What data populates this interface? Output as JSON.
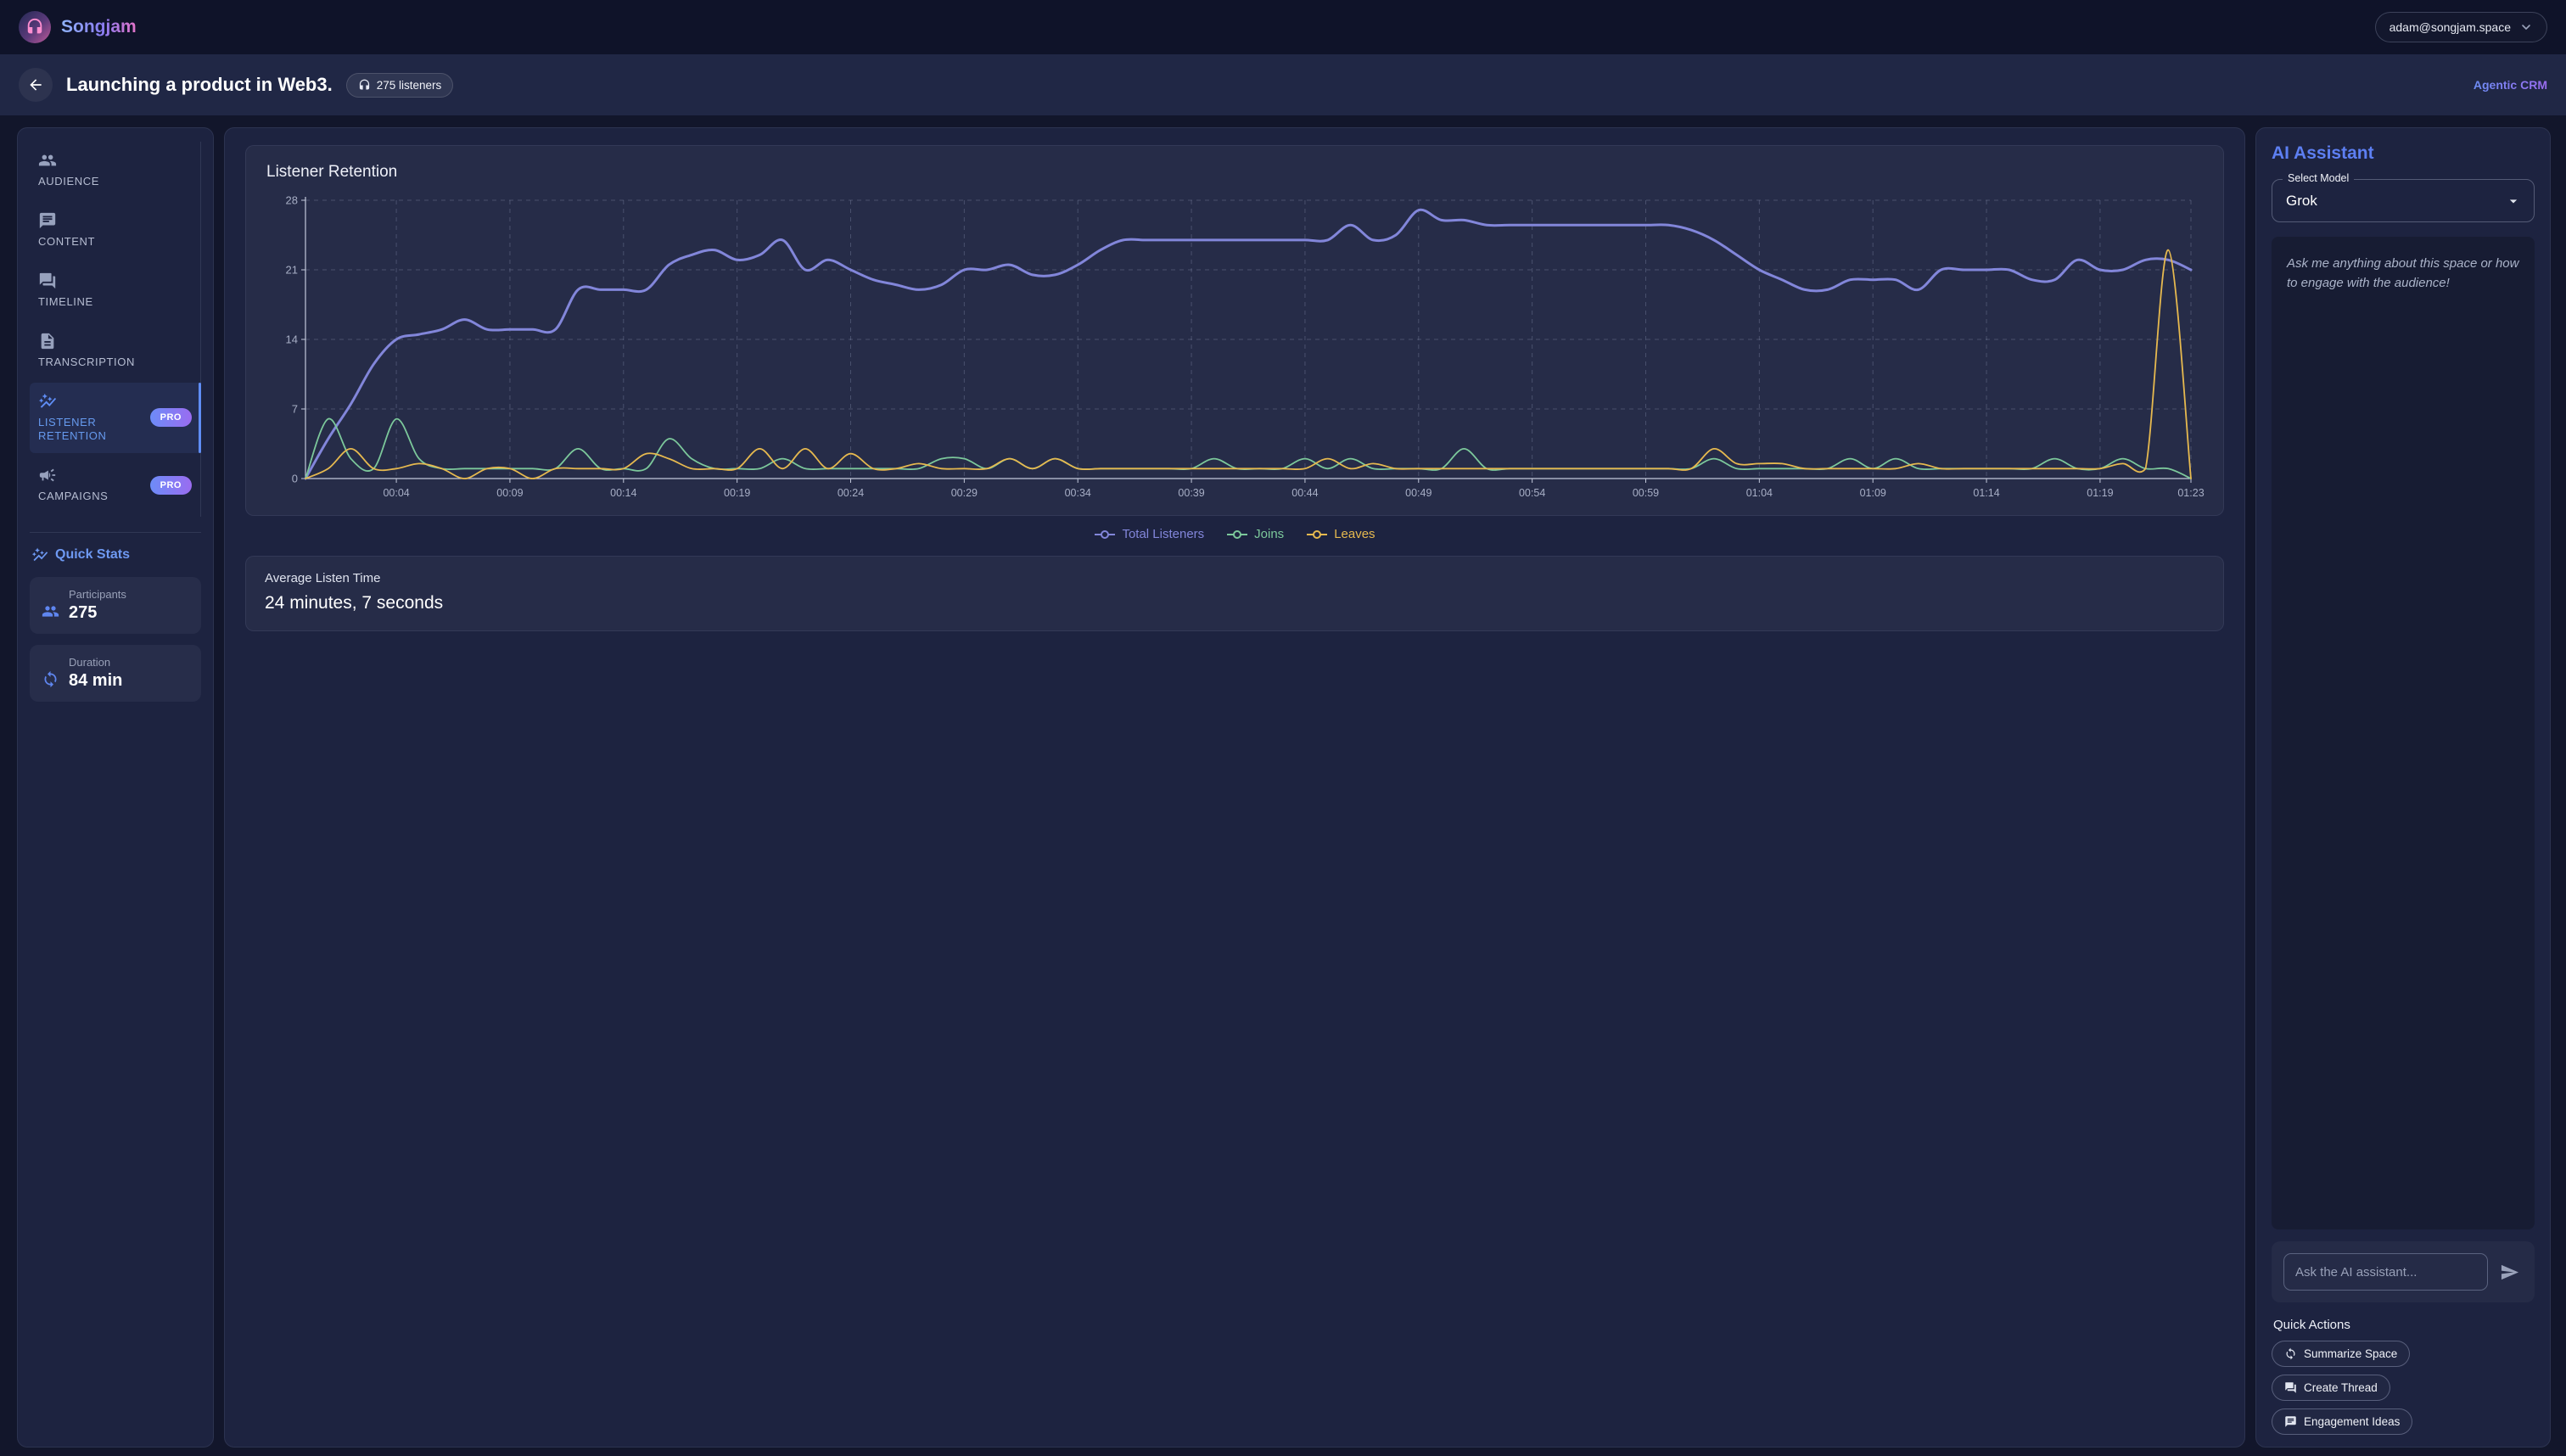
{
  "brand": {
    "name": "Songjam",
    "logo_icon": "headphones-girl",
    "account_email": "adam@songjam.space"
  },
  "header": {
    "title": "Launching a product in Web3.",
    "listeners_badge": "275 listeners",
    "crm_link": "Agentic CRM"
  },
  "sidebar": {
    "pro_label": "PRO",
    "items": [
      {
        "label": "AUDIENCE",
        "icon": "people",
        "selected": false,
        "pro": false
      },
      {
        "label": "CONTENT",
        "icon": "chat",
        "selected": false,
        "pro": false
      },
      {
        "label": "TIMELINE",
        "icon": "forum",
        "selected": false,
        "pro": false
      },
      {
        "label": "TRANSCRIPTION",
        "icon": "document",
        "selected": false,
        "pro": false
      },
      {
        "label": "LISTENER RETENTION",
        "icon": "auto-graph",
        "selected": true,
        "pro": true
      },
      {
        "label": "CAMPAIGNS",
        "icon": "megaphone",
        "selected": false,
        "pro": true
      }
    ],
    "quick_stats": {
      "title": "Quick Stats",
      "icon": "auto-graph",
      "stats": [
        {
          "label": "Participants",
          "value": "275",
          "icon": "people"
        },
        {
          "label": "Duration",
          "value": "84 min",
          "icon": "sync"
        }
      ]
    }
  },
  "average_listen_time": {
    "label": "Average Listen Time",
    "value": "24 minutes, 7 seconds"
  },
  "ai_panel": {
    "title": "AI Assistant",
    "select_label": "Select Model",
    "selected_model": "Grok",
    "empty_message": "Ask me anything about this space or how to engage with the audience!",
    "input_placeholder": "Ask the AI assistant...",
    "quick_actions_label": "Quick Actions",
    "actions": [
      {
        "label": "Summarize Space",
        "icon": "sync"
      },
      {
        "label": "Create Thread",
        "icon": "forum"
      },
      {
        "label": "Engagement Ideas",
        "icon": "chat"
      }
    ]
  },
  "colors": {
    "accent_blue": "#5f86f0",
    "total_listeners": "#8286da",
    "joins": "#7cc89b",
    "leaves": "#e6b94f",
    "card_bg": "#1d2340",
    "inner_card_bg": "#262c48",
    "axis": "#c3c9db",
    "grid": "rgba(148,158,190,0.32)",
    "tick_text": "#a7aec5"
  },
  "chart_data": {
    "type": "line",
    "title": "Listener Retention",
    "xlabel": "",
    "ylabel": "",
    "x_unit": "elapsed time (mm:ss), one point per minute, 00:00 to 01:23",
    "ylim": [
      0,
      28
    ],
    "y_ticks": [
      0,
      7,
      14,
      21,
      28
    ],
    "grid": "dashed",
    "legend_position": "bottom",
    "x_tick_positions": [
      4,
      9,
      14,
      19,
      24,
      29,
      34,
      39,
      44,
      49,
      54,
      59,
      64,
      69,
      74,
      79,
      83
    ],
    "x_tick_labels": [
      "00:04",
      "00:09",
      "00:14",
      "00:19",
      "00:24",
      "00:29",
      "00:34",
      "00:39",
      "00:44",
      "00:49",
      "00:54",
      "00:59",
      "01:04",
      "01:09",
      "01:14",
      "01:19",
      "01:23"
    ],
    "series": [
      {
        "name": "Total Listeners",
        "color": "#8286da",
        "width": 3,
        "values": [
          0,
          4,
          7.5,
          11.5,
          14,
          14.5,
          15,
          16,
          15,
          15,
          15,
          15,
          19,
          19,
          19,
          19,
          21.5,
          22.5,
          23,
          22,
          22.5,
          24,
          21,
          22,
          21,
          20,
          19.5,
          19,
          19.5,
          21,
          21,
          21.5,
          20.5,
          20.5,
          21.5,
          23,
          24,
          24,
          24,
          24,
          24,
          24,
          24,
          24,
          24,
          24,
          25.5,
          24,
          24.5,
          27,
          26,
          26,
          25.5,
          25.5,
          25.5,
          25.5,
          25.5,
          25.5,
          25.5,
          25.5,
          25.5,
          25,
          24,
          22.5,
          21,
          20,
          19,
          19,
          20,
          20,
          20,
          19,
          21,
          21,
          21,
          21,
          20,
          20,
          22,
          21,
          21,
          22,
          22,
          21
        ]
      },
      {
        "name": "Joins",
        "color": "#7cc89b",
        "width": 1.8,
        "values": [
          0,
          6,
          2,
          1,
          6,
          2,
          1,
          1,
          1,
          1,
          1,
          1,
          3,
          1,
          1,
          1,
          4,
          2,
          1,
          1,
          1,
          2,
          1,
          1,
          1,
          1,
          1,
          1,
          2,
          2,
          1,
          2,
          1,
          2,
          1,
          1,
          1,
          1,
          1,
          1,
          2,
          1,
          1,
          1,
          2,
          1,
          2,
          1,
          1,
          1,
          1,
          3,
          1,
          1,
          1,
          1,
          1,
          1,
          1,
          1,
          1,
          1,
          2,
          1,
          1,
          1,
          1,
          1,
          2,
          1,
          2,
          1,
          1,
          1,
          1,
          1,
          1,
          2,
          1,
          1,
          2,
          1,
          1,
          0
        ]
      },
      {
        "name": "Leaves",
        "color": "#e6b94f",
        "width": 1.8,
        "values": [
          0,
          1,
          3,
          1,
          1,
          1.5,
          1,
          0,
          1,
          1,
          0,
          1,
          1,
          1,
          1,
          2.5,
          2,
          1,
          1,
          1,
          3,
          1,
          3,
          1,
          2.5,
          1,
          1,
          1.5,
          1,
          1,
          1,
          2,
          1,
          2,
          1,
          1,
          1,
          1,
          1,
          1,
          1,
          1,
          1,
          1,
          1,
          2,
          1,
          1.5,
          1,
          1,
          1,
          1,
          1,
          1,
          1,
          1,
          1,
          1,
          1,
          1,
          1,
          1,
          3,
          1.5,
          1.5,
          1.5,
          1,
          1,
          1,
          1,
          1,
          1.5,
          1,
          1,
          1,
          1,
          1,
          1,
          1,
          1,
          1.5,
          1,
          23,
          0
        ]
      }
    ]
  }
}
